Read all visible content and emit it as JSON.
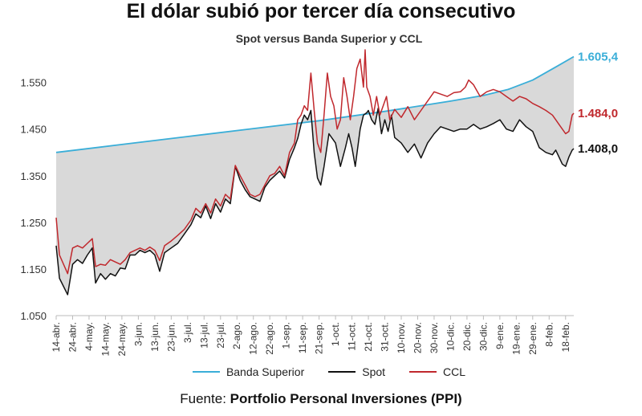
{
  "header": {
    "title": "El dólar subió por tercer día consecutivo",
    "subtitle": "Spot versus Banda Superior y CCL"
  },
  "footer": {
    "source_prefix": "Fuente:",
    "source_name": "Portfolio Personal Inversiones (PPI)"
  },
  "chart_data": {
    "type": "line",
    "title": "Spot versus Banda Superior y CCL",
    "ylim": [
      1050,
      1620
    ],
    "yticks": [
      1050,
      1150,
      1250,
      1350,
      1450,
      1550
    ],
    "ytick_labels": [
      "1.050",
      "1.150",
      "1.250",
      "1.350",
      "1.450",
      "1.550"
    ],
    "x_index_range": [
      0,
      315
    ],
    "xticks": [
      {
        "i": 0,
        "label": "14-abr."
      },
      {
        "i": 10,
        "label": "24-abr."
      },
      {
        "i": 20,
        "label": "4-may."
      },
      {
        "i": 30,
        "label": "14-may."
      },
      {
        "i": 40,
        "label": "24-may."
      },
      {
        "i": 50,
        "label": "3-jun."
      },
      {
        "i": 60,
        "label": "13-jun."
      },
      {
        "i": 70,
        "label": "23-jun."
      },
      {
        "i": 80,
        "label": "3-jul."
      },
      {
        "i": 90,
        "label": "13-jul."
      },
      {
        "i": 100,
        "label": "23-jul."
      },
      {
        "i": 110,
        "label": "2-ago."
      },
      {
        "i": 120,
        "label": "12-ago."
      },
      {
        "i": 130,
        "label": "22-ago."
      },
      {
        "i": 140,
        "label": "1-sep."
      },
      {
        "i": 150,
        "label": "11-sep."
      },
      {
        "i": 160,
        "label": "21-sep."
      },
      {
        "i": 170,
        "label": "1-oct."
      },
      {
        "i": 180,
        "label": "11-oct."
      },
      {
        "i": 190,
        "label": "21-oct."
      },
      {
        "i": 200,
        "label": "31-oct."
      },
      {
        "i": 210,
        "label": "10-nov."
      },
      {
        "i": 220,
        "label": "20-nov."
      },
      {
        "i": 230,
        "label": "30-nov."
      },
      {
        "i": 240,
        "label": "10-dic."
      },
      {
        "i": 250,
        "label": "20-dic."
      },
      {
        "i": 260,
        "label": "30-dic."
      },
      {
        "i": 270,
        "label": "9-ene."
      },
      {
        "i": 280,
        "label": "19-ene."
      },
      {
        "i": 290,
        "label": "29-ene."
      },
      {
        "i": 300,
        "label": "8-feb."
      },
      {
        "i": 310,
        "label": "18-feb."
      }
    ],
    "series": [
      {
        "name": "Banda Superior",
        "color": "#3aaed8",
        "end_label": "1.605,4",
        "points": [
          [
            0,
            1400
          ],
          [
            40,
            1417
          ],
          [
            80,
            1434
          ],
          [
            120,
            1451
          ],
          [
            160,
            1468
          ],
          [
            200,
            1488
          ],
          [
            240,
            1510
          ],
          [
            260,
            1522
          ],
          [
            275,
            1535
          ],
          [
            290,
            1555
          ],
          [
            305,
            1585
          ],
          [
            315,
            1605.4
          ]
        ]
      },
      {
        "name": "Spot",
        "color": "#111111",
        "end_label": "1.408,0",
        "points": [
          [
            0,
            1200
          ],
          [
            2,
            1130
          ],
          [
            7,
            1095
          ],
          [
            10,
            1160
          ],
          [
            13,
            1170
          ],
          [
            16,
            1162
          ],
          [
            19,
            1180
          ],
          [
            22,
            1195
          ],
          [
            24,
            1120
          ],
          [
            27,
            1140
          ],
          [
            30,
            1128
          ],
          [
            33,
            1140
          ],
          [
            36,
            1135
          ],
          [
            39,
            1152
          ],
          [
            42,
            1150
          ],
          [
            45,
            1180
          ],
          [
            48,
            1180
          ],
          [
            51,
            1190
          ],
          [
            54,
            1185
          ],
          [
            57,
            1190
          ],
          [
            60,
            1180
          ],
          [
            63,
            1145
          ],
          [
            66,
            1185
          ],
          [
            70,
            1195
          ],
          [
            74,
            1205
          ],
          [
            78,
            1225
          ],
          [
            82,
            1245
          ],
          [
            85,
            1268
          ],
          [
            88,
            1260
          ],
          [
            91,
            1285
          ],
          [
            94,
            1258
          ],
          [
            97,
            1290
          ],
          [
            100,
            1272
          ],
          [
            103,
            1300
          ],
          [
            106,
            1290
          ],
          [
            109,
            1370
          ],
          [
            112,
            1340
          ],
          [
            115,
            1320
          ],
          [
            118,
            1305
          ],
          [
            121,
            1300
          ],
          [
            124,
            1295
          ],
          [
            127,
            1325
          ],
          [
            130,
            1340
          ],
          [
            133,
            1350
          ],
          [
            136,
            1360
          ],
          [
            139,
            1345
          ],
          [
            142,
            1385
          ],
          [
            145,
            1410
          ],
          [
            147,
            1430
          ],
          [
            149,
            1460
          ],
          [
            151,
            1480
          ],
          [
            153,
            1470
          ],
          [
            155,
            1490
          ],
          [
            157,
            1400
          ],
          [
            159,
            1345
          ],
          [
            161,
            1330
          ],
          [
            163,
            1370
          ],
          [
            166,
            1440
          ],
          [
            168,
            1430
          ],
          [
            170,
            1420
          ],
          [
            173,
            1370
          ],
          [
            176,
            1410
          ],
          [
            178,
            1440
          ],
          [
            180,
            1410
          ],
          [
            182,
            1370
          ],
          [
            185,
            1450
          ],
          [
            187,
            1480
          ],
          [
            189,
            1485
          ],
          [
            190,
            1490
          ],
          [
            192,
            1470
          ],
          [
            194,
            1460
          ],
          [
            196,
            1495
          ],
          [
            198,
            1440
          ],
          [
            200,
            1470
          ],
          [
            202,
            1445
          ],
          [
            204,
            1480
          ],
          [
            206,
            1432
          ],
          [
            210,
            1420
          ],
          [
            214,
            1400
          ],
          [
            218,
            1418
          ],
          [
            222,
            1388
          ],
          [
            226,
            1420
          ],
          [
            230,
            1440
          ],
          [
            234,
            1455
          ],
          [
            238,
            1450
          ],
          [
            242,
            1445
          ],
          [
            246,
            1450
          ],
          [
            250,
            1450
          ],
          [
            254,
            1460
          ],
          [
            258,
            1450
          ],
          [
            262,
            1455
          ],
          [
            266,
            1462
          ],
          [
            270,
            1470
          ],
          [
            274,
            1450
          ],
          [
            278,
            1445
          ],
          [
            282,
            1470
          ],
          [
            286,
            1455
          ],
          [
            290,
            1445
          ],
          [
            294,
            1410
          ],
          [
            298,
            1400
          ],
          [
            302,
            1395
          ],
          [
            304,
            1405
          ],
          [
            306,
            1390
          ],
          [
            308,
            1375
          ],
          [
            310,
            1370
          ],
          [
            312,
            1390
          ],
          [
            314,
            1405
          ],
          [
            315,
            1408
          ]
        ]
      },
      {
        "name": "CCL",
        "color": "#c0282d",
        "end_label": "1.484,0",
        "points": [
          [
            0,
            1260
          ],
          [
            2,
            1180
          ],
          [
            7,
            1140
          ],
          [
            10,
            1195
          ],
          [
            13,
            1200
          ],
          [
            16,
            1195
          ],
          [
            19,
            1205
          ],
          [
            22,
            1215
          ],
          [
            24,
            1155
          ],
          [
            27,
            1160
          ],
          [
            30,
            1158
          ],
          [
            33,
            1170
          ],
          [
            36,
            1165
          ],
          [
            39,
            1160
          ],
          [
            42,
            1170
          ],
          [
            45,
            1185
          ],
          [
            48,
            1190
          ],
          [
            51,
            1195
          ],
          [
            54,
            1190
          ],
          [
            57,
            1197
          ],
          [
            60,
            1190
          ],
          [
            63,
            1168
          ],
          [
            66,
            1200
          ],
          [
            70,
            1210
          ],
          [
            74,
            1222
          ],
          [
            78,
            1235
          ],
          [
            82,
            1255
          ],
          [
            85,
            1280
          ],
          [
            88,
            1270
          ],
          [
            91,
            1290
          ],
          [
            94,
            1270
          ],
          [
            97,
            1300
          ],
          [
            100,
            1285
          ],
          [
            103,
            1310
          ],
          [
            106,
            1300
          ],
          [
            109,
            1372
          ],
          [
            112,
            1350
          ],
          [
            115,
            1330
          ],
          [
            118,
            1310
          ],
          [
            121,
            1305
          ],
          [
            124,
            1310
          ],
          [
            127,
            1330
          ],
          [
            130,
            1350
          ],
          [
            133,
            1355
          ],
          [
            136,
            1370
          ],
          [
            139,
            1350
          ],
          [
            142,
            1400
          ],
          [
            145,
            1420
          ],
          [
            147,
            1470
          ],
          [
            149,
            1480
          ],
          [
            151,
            1500
          ],
          [
            153,
            1490
          ],
          [
            155,
            1570
          ],
          [
            157,
            1490
          ],
          [
            159,
            1420
          ],
          [
            161,
            1400
          ],
          [
            163,
            1480
          ],
          [
            165,
            1570
          ],
          [
            167,
            1520
          ],
          [
            169,
            1500
          ],
          [
            171,
            1450
          ],
          [
            173,
            1470
          ],
          [
            175,
            1560
          ],
          [
            177,
            1520
          ],
          [
            179,
            1470
          ],
          [
            181,
            1520
          ],
          [
            183,
            1580
          ],
          [
            185,
            1600
          ],
          [
            187,
            1540
          ],
          [
            188,
            1620
          ],
          [
            189,
            1540
          ],
          [
            191,
            1520
          ],
          [
            193,
            1480
          ],
          [
            195,
            1520
          ],
          [
            197,
            1480
          ],
          [
            199,
            1500
          ],
          [
            201,
            1520
          ],
          [
            203,
            1470
          ],
          [
            206,
            1492
          ],
          [
            210,
            1475
          ],
          [
            214,
            1498
          ],
          [
            218,
            1470
          ],
          [
            222,
            1490
          ],
          [
            226,
            1510
          ],
          [
            230,
            1530
          ],
          [
            234,
            1525
          ],
          [
            238,
            1520
          ],
          [
            242,
            1528
          ],
          [
            246,
            1530
          ],
          [
            249,
            1540
          ],
          [
            251,
            1555
          ],
          [
            254,
            1545
          ],
          [
            258,
            1520
          ],
          [
            262,
            1530
          ],
          [
            266,
            1535
          ],
          [
            270,
            1530
          ],
          [
            274,
            1520
          ],
          [
            278,
            1510
          ],
          [
            282,
            1520
          ],
          [
            286,
            1515
          ],
          [
            290,
            1505
          ],
          [
            294,
            1498
          ],
          [
            298,
            1490
          ],
          [
            302,
            1480
          ],
          [
            304,
            1470
          ],
          [
            306,
            1460
          ],
          [
            308,
            1450
          ],
          [
            310,
            1440
          ],
          [
            312,
            1445
          ],
          [
            314,
            1480
          ],
          [
            315,
            1484
          ]
        ]
      }
    ],
    "fill": {
      "between": [
        "Banda Superior",
        "Spot"
      ],
      "color": "#d9d9d9"
    }
  }
}
